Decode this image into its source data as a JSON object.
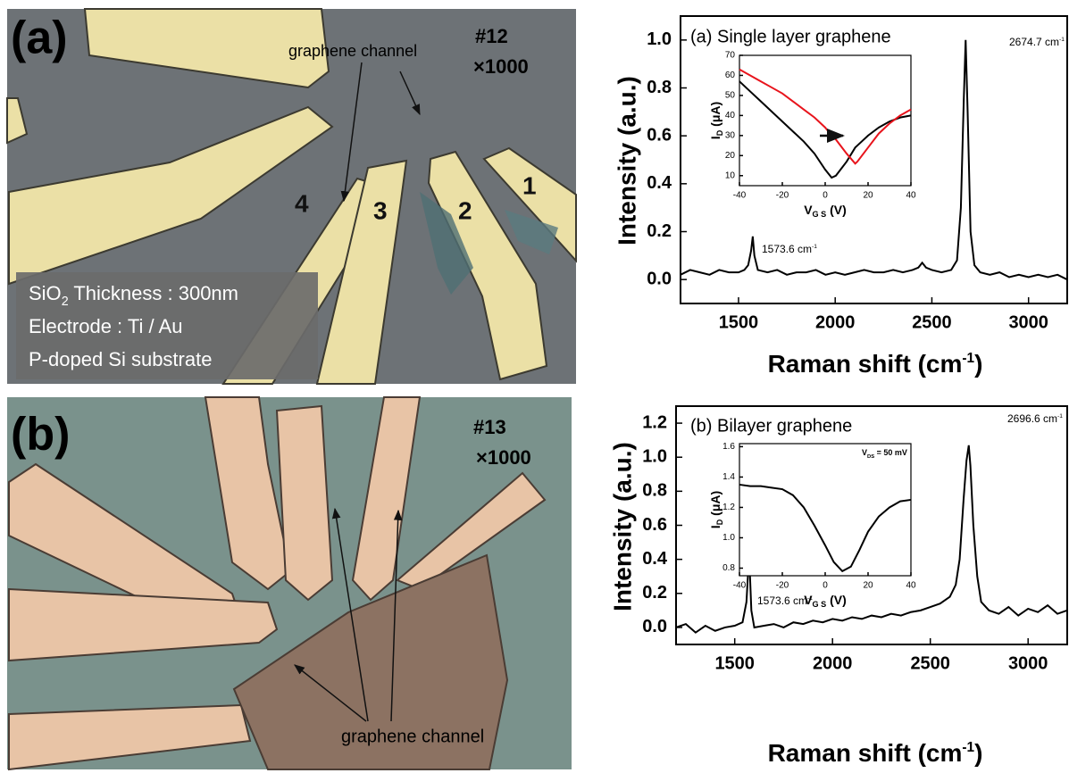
{
  "image_a": {
    "label": "(a)",
    "sample": "#12",
    "magnification": "×1000",
    "arrow_label": "graphene channel",
    "electrodes": [
      "1",
      "2",
      "3",
      "4"
    ],
    "info": [
      {
        "main": "SiO",
        "sub": "2",
        "rest": " Thickness : 300nm"
      },
      "Electrode : Ti / Au",
      "P-doped Si substrate"
    ]
  },
  "image_b": {
    "label": "(b)",
    "sample": "#13",
    "magnification": "×1000",
    "arrow_label": "graphene channel"
  },
  "chart_data": [
    {
      "type": "line",
      "title": "(a) Single layer graphene",
      "xlabel": {
        "main": "Raman shift (cm",
        "sup": "-1",
        "rest": ")"
      },
      "ylabel": "Intensity (a.u.)",
      "x": [
        1200,
        1250,
        1300,
        1350,
        1400,
        1450,
        1500,
        1530,
        1550,
        1565,
        1573.6,
        1582,
        1600,
        1650,
        1700,
        1750,
        1800,
        1850,
        1900,
        1950,
        2000,
        2050,
        2100,
        2150,
        2200,
        2250,
        2300,
        2350,
        2400,
        2430,
        2450,
        2470,
        2500,
        2550,
        2600,
        2630,
        2650,
        2665,
        2674.7,
        2685,
        2700,
        2720,
        2750,
        2800,
        2850,
        2900,
        2950,
        3000,
        3050,
        3100,
        3150,
        3200
      ],
      "series": [
        {
          "color": "#000000",
          "values": [
            0.02,
            0.04,
            0.03,
            0.02,
            0.04,
            0.03,
            0.03,
            0.04,
            0.06,
            0.12,
            0.18,
            0.1,
            0.04,
            0.03,
            0.04,
            0.02,
            0.03,
            0.03,
            0.04,
            0.02,
            0.03,
            0.02,
            0.03,
            0.04,
            0.03,
            0.03,
            0.04,
            0.03,
            0.04,
            0.05,
            0.07,
            0.05,
            0.04,
            0.03,
            0.04,
            0.08,
            0.3,
            0.75,
            1.0,
            0.7,
            0.2,
            0.06,
            0.03,
            0.02,
            0.03,
            0.01,
            0.02,
            0.01,
            0.02,
            0.01,
            0.02,
            0.0
          ]
        }
      ],
      "annotations": [
        {
          "text": "1573.6 cm",
          "sup": "-1"
        },
        {
          "text": "2674.7 cm",
          "sup": "-1"
        }
      ],
      "xlim": [
        1200,
        3200
      ],
      "ylim": [
        -0.1,
        1.1
      ],
      "xticks": [
        1500,
        2000,
        2500,
        3000
      ],
      "yticks": [
        {
          "value": 0,
          "label": "0.0"
        },
        0.2,
        0.4,
        0.6,
        0.8,
        {
          "value": 1,
          "label": "1.0"
        }
      ]
    },
    {
      "type": "line",
      "xlabel": {
        "main": "V",
        "sub": "G S",
        "rest": " (V)"
      },
      "ylabel": {
        "main": "I",
        "sub": "D",
        "rest": " (μA)"
      },
      "x": [
        -40,
        -35,
        -30,
        -25,
        -20,
        -15,
        -10,
        -5,
        0,
        3,
        5,
        10,
        14,
        15,
        20,
        25,
        30,
        35,
        40
      ],
      "series": [
        {
          "color": "#000000",
          "values": [
            57,
            52,
            47,
            42,
            37,
            32,
            27,
            21,
            13,
            9,
            10,
            17,
            24,
            25,
            30,
            34,
            37,
            39,
            40
          ]
        },
        {
          "color": "#e8141c",
          "values": [
            63,
            60,
            57,
            54,
            51,
            47,
            43,
            39,
            34,
            30,
            28,
            21,
            16,
            17,
            24,
            31,
            36,
            40,
            43
          ]
        }
      ],
      "xlim": [
        -40,
        40
      ],
      "ylim": [
        5,
        70
      ],
      "xticks": [
        -40,
        -20,
        0,
        20,
        40
      ],
      "yticks": [
        10,
        20,
        30,
        40,
        50,
        60,
        70
      ]
    },
    {
      "type": "line",
      "title": "(b) Bilayer graphene",
      "xlabel": {
        "main": "Raman shift (cm",
        "sup": "-1",
        "rest": ")"
      },
      "ylabel": "Intensity (a.u.)",
      "x": [
        1200,
        1250,
        1300,
        1350,
        1400,
        1450,
        1500,
        1540,
        1560,
        1573.6,
        1585,
        1600,
        1650,
        1700,
        1750,
        1800,
        1850,
        1900,
        1950,
        2000,
        2050,
        2100,
        2150,
        2200,
        2250,
        2300,
        2350,
        2400,
        2450,
        2500,
        2550,
        2600,
        2630,
        2650,
        2670,
        2685,
        2696.6,
        2705,
        2720,
        2740,
        2760,
        2800,
        2850,
        2900,
        2950,
        3000,
        3050,
        3100,
        3150,
        3200
      ],
      "series": [
        {
          "color": "#000000",
          "values": [
            0.0,
            0.02,
            -0.03,
            0.01,
            -0.02,
            0.0,
            0.01,
            0.03,
            0.15,
            0.43,
            0.1,
            0.0,
            0.01,
            0.02,
            0.0,
            0.03,
            0.02,
            0.04,
            0.03,
            0.05,
            0.04,
            0.06,
            0.05,
            0.07,
            0.06,
            0.08,
            0.07,
            0.09,
            0.1,
            0.12,
            0.14,
            0.18,
            0.25,
            0.4,
            0.75,
            0.98,
            1.07,
            0.95,
            0.6,
            0.3,
            0.15,
            0.1,
            0.08,
            0.12,
            0.07,
            0.11,
            0.09,
            0.13,
            0.08,
            0.1
          ]
        }
      ],
      "annotations": [
        {
          "text": "1573.6 cm",
          "sup": "-1"
        },
        {
          "text": "2696.6 cm",
          "sup": "-1"
        }
      ],
      "xlim": [
        1200,
        3200
      ],
      "ylim": [
        -0.1,
        1.3
      ],
      "xticks": [
        1500,
        2000,
        2500,
        3000
      ],
      "yticks": [
        {
          "value": 0,
          "label": "0.0"
        },
        0.2,
        0.4,
        0.6,
        0.8,
        {
          "value": 1,
          "label": "1.0"
        },
        1.2
      ]
    },
    {
      "type": "line",
      "xlabel": {
        "main": "V",
        "sub": "G S",
        "rest": " (V)"
      },
      "ylabel": {
        "main": "I",
        "sub": "D",
        "rest": " (μA)"
      },
      "annotations": [
        {
          "main": "V",
          "sub": "DS",
          "rest": " = 50 mV"
        }
      ],
      "x": [
        -40,
        -35,
        -30,
        -25,
        -20,
        -15,
        -10,
        -5,
        0,
        4,
        8,
        12,
        16,
        20,
        25,
        30,
        35,
        40
      ],
      "series": [
        {
          "color": "#000000",
          "values": [
            1.35,
            1.34,
            1.34,
            1.33,
            1.32,
            1.28,
            1.2,
            1.08,
            0.95,
            0.84,
            0.78,
            0.81,
            0.92,
            1.04,
            1.14,
            1.2,
            1.24,
            1.25
          ]
        }
      ],
      "xlim": [
        -40,
        40
      ],
      "ylim": [
        0.75,
        1.62
      ],
      "xticks": [
        -40,
        -20,
        0,
        20,
        40
      ],
      "yticks": [
        0.8,
        {
          "value": 1,
          "label": "1.0"
        },
        1.2,
        1.4,
        1.6
      ]
    }
  ]
}
